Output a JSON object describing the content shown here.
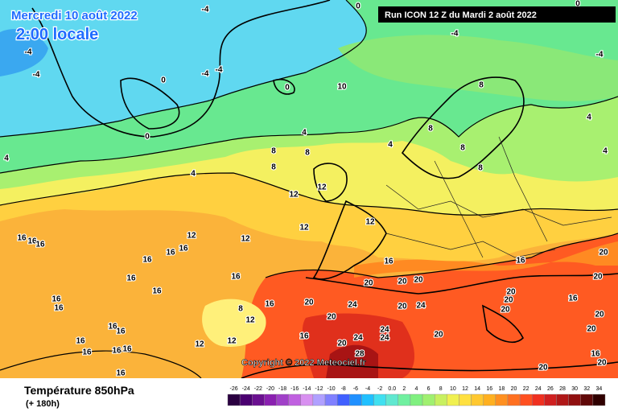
{
  "header": {
    "title": "Mercredi 10 août 2022",
    "subtitle": "2:00 locale"
  },
  "run_info": "Run ICON 12 Z du Mardi 2 août 2022",
  "copyright": "Copyright © 2022 Meteociel.fr",
  "footer": {
    "title": "Température 850hPa",
    "subtitle": "(+ 180h)"
  },
  "legend": {
    "labels": [
      "-26",
      "-24",
      "-22",
      "-20",
      "-18",
      "-16",
      "-14",
      "-12",
      "-10",
      "-8",
      "-6",
      "-4",
      "-2",
      "0.0",
      "2",
      "4",
      "6",
      "8",
      "10",
      "12",
      "14",
      "16",
      "18",
      "20",
      "22",
      "24",
      "26",
      "28",
      "30",
      "32",
      "34"
    ],
    "colors": [
      "#2a0040",
      "#4a0070",
      "#6a1090",
      "#8a20b0",
      "#a040c8",
      "#c060e0",
      "#d890f0",
      "#b0a0ff",
      "#8080ff",
      "#4060ff",
      "#2090ff",
      "#20c0ff",
      "#40e0f0",
      "#60e8d0",
      "#70f0a0",
      "#80f080",
      "#a0f070",
      "#c8f060",
      "#f0f050",
      "#ffe040",
      "#ffc830",
      "#ffb020",
      "#ff9020",
      "#ff7020",
      "#ff5020",
      "#f03020",
      "#d02020",
      "#b01818",
      "#901010",
      "#600808",
      "#300000"
    ]
  },
  "contour_labels": [
    "-4",
    "0",
    "0",
    "-4",
    "-4",
    "-4",
    "-4",
    "-4",
    "-4",
    "0",
    "0",
    "10",
    "0",
    "4",
    "4",
    "4",
    "4",
    "8",
    "8",
    "8",
    "8",
    "8",
    "8",
    "8",
    "4",
    "4",
    "12",
    "12",
    "12",
    "12",
    "12",
    "12",
    "16",
    "16",
    "16",
    "16",
    "16",
    "16",
    "16",
    "16",
    "16",
    "16",
    "16",
    "16",
    "16",
    "8",
    "12",
    "12",
    "12",
    "16",
    "20",
    "20",
    "20",
    "24",
    "20",
    "24",
    "20",
    "20",
    "24",
    "24",
    "24",
    "20",
    "28",
    "20",
    "20",
    "20",
    "20",
    "20",
    "20",
    "16",
    "20",
    "20",
    "16",
    "20",
    "20",
    "16",
    "16",
    "16",
    "16",
    "16",
    "16",
    "16",
    "16"
  ]
}
